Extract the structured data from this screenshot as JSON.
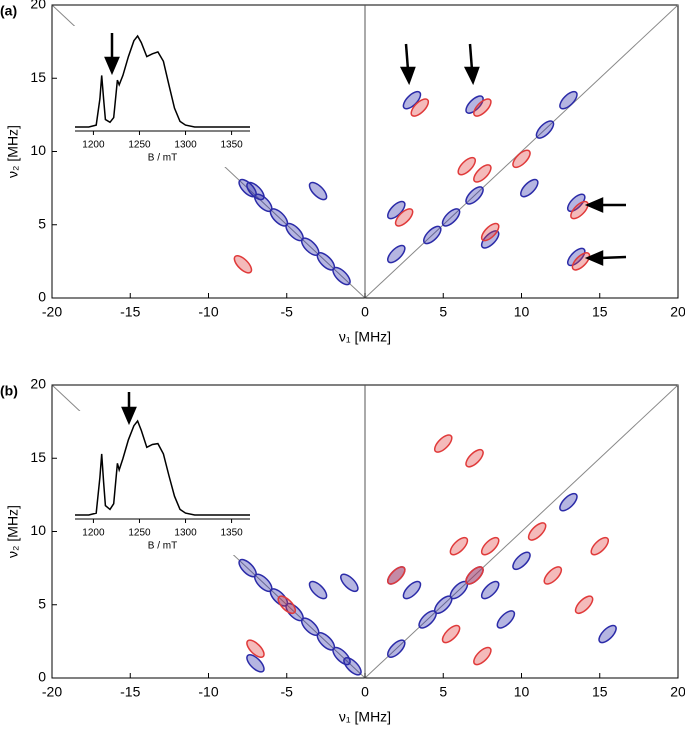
{
  "chart_data": [
    {
      "type": "contour",
      "title": "(a)",
      "xlabel": "ν₁ [MHz]",
      "ylabel": "ν₂ [MHz]",
      "xlim": [
        -20,
        20
      ],
      "ylim": [
        0,
        20
      ],
      "xticks": [
        -20,
        -15,
        -10,
        -5,
        0,
        5,
        10,
        15,
        20
      ],
      "yticks": [
        0,
        5,
        10,
        15,
        20
      ],
      "series": [
        {
          "color": "#2b2ba8",
          "x": [
            -7.5,
            -6.5,
            -5.5,
            -4.5,
            -3.5,
            -2.5,
            -1.5,
            -7,
            -3,
            2,
            2,
            4.3,
            5.5,
            7,
            8,
            3,
            7,
            11.5,
            13,
            13.5,
            13.5,
            10.5
          ],
          "y": [
            7.5,
            6.5,
            5.5,
            4.5,
            3.5,
            2.5,
            1.5,
            7.3,
            7.3,
            6,
            3,
            4.3,
            5.5,
            7,
            4,
            13.5,
            13.2,
            11.5,
            13.5,
            6.5,
            2.8,
            7.5
          ]
        },
        {
          "color": "#e03a3a",
          "x": [
            7.5,
            13.7,
            13.8,
            8,
            3.5,
            7.5,
            10,
            6.5,
            -7.8,
            2.5
          ],
          "y": [
            8.5,
            6,
            2.5,
            4.5,
            13,
            13,
            9.5,
            9,
            2.3,
            5.5
          ]
        }
      ],
      "inset": {
        "type": "line",
        "xlabel": "B / mT",
        "xlim": [
          1180,
          1370
        ],
        "xticks": [
          1200,
          1250,
          1300,
          1350
        ],
        "color": "#000000",
        "x": [
          1180,
          1195,
          1203,
          1207,
          1209,
          1211,
          1213,
          1218,
          1222,
          1226,
          1228,
          1232,
          1238,
          1244,
          1248,
          1252,
          1258,
          1264,
          1270,
          1276,
          1282,
          1288,
          1294,
          1300,
          1310,
          1330,
          1370
        ],
        "values": [
          0,
          0,
          0.02,
          0.3,
          0.55,
          0.3,
          0.08,
          0.05,
          0.1,
          0.5,
          0.45,
          0.55,
          0.75,
          0.92,
          0.97,
          0.9,
          0.75,
          0.78,
          0.8,
          0.7,
          0.45,
          0.2,
          0.06,
          0.02,
          0,
          0,
          0
        ]
      }
    },
    {
      "type": "contour",
      "title": "(b)",
      "xlabel": "ν₁ [MHz]",
      "ylabel": "ν₂ [MHz]",
      "xlim": [
        -20,
        20
      ],
      "ylim": [
        0,
        20
      ],
      "xticks": [
        -20,
        -15,
        -10,
        -5,
        0,
        5,
        10,
        15,
        20
      ],
      "yticks": [
        0,
        5,
        10,
        15,
        20
      ],
      "series": [
        {
          "color": "#2b2ba8",
          "x": [
            -7.5,
            -6.5,
            -5.5,
            -4.5,
            -3.5,
            -2.5,
            -1.5,
            -0.8,
            -7,
            -3,
            -1,
            2,
            3,
            4,
            5,
            6,
            7,
            8,
            9,
            13,
            2,
            10,
            15.5
          ],
          "y": [
            7.5,
            6.5,
            5.5,
            4.5,
            3.5,
            2.5,
            1.5,
            0.8,
            1,
            6,
            6.5,
            2,
            6,
            4,
            5,
            6,
            7,
            6,
            4,
            12,
            7,
            8,
            3
          ]
        },
        {
          "color": "#e03a3a",
          "x": [
            7,
            6,
            8,
            11,
            12,
            14,
            15,
            5,
            7,
            2,
            -7,
            -5,
            7.5,
            5.5
          ],
          "y": [
            7,
            9,
            9,
            10,
            7,
            5,
            9,
            16,
            15,
            7,
            2,
            5,
            1.5,
            3
          ]
        }
      ],
      "inset": {
        "type": "line",
        "xlabel": "B / mT",
        "xlim": [
          1180,
          1370
        ],
        "xticks": [
          1200,
          1250,
          1300,
          1350
        ],
        "color": "#000000",
        "x": [
          1180,
          1195,
          1203,
          1207,
          1209,
          1211,
          1213,
          1218,
          1222,
          1226,
          1228,
          1232,
          1238,
          1244,
          1248,
          1252,
          1258,
          1264,
          1270,
          1276,
          1282,
          1288,
          1294,
          1300,
          1310,
          1330,
          1370
        ],
        "values": [
          0,
          0,
          0.02,
          0.4,
          0.65,
          0.35,
          0.1,
          0.06,
          0.12,
          0.55,
          0.48,
          0.6,
          0.8,
          0.95,
          1,
          0.9,
          0.72,
          0.75,
          0.76,
          0.65,
          0.42,
          0.2,
          0.06,
          0.02,
          0,
          0,
          0
        ]
      }
    }
  ]
}
